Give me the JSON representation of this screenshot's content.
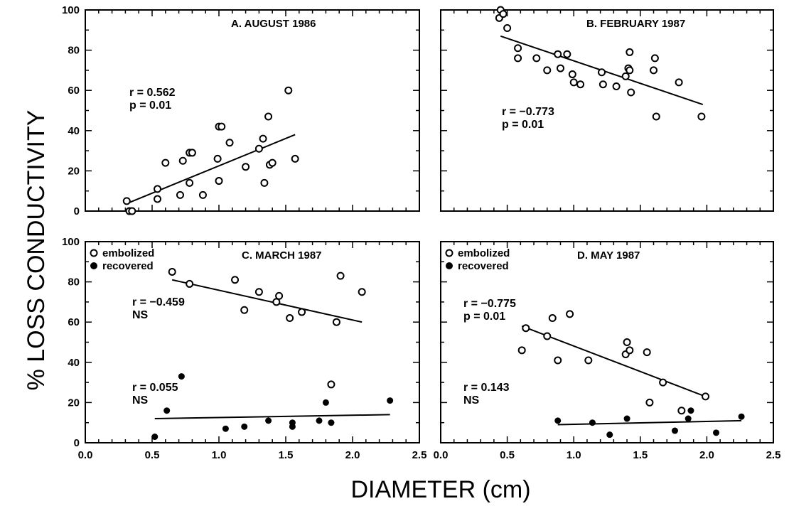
{
  "ylabel": "% LOSS CONDUCTIVITY",
  "xlabel": "DIAMETER (cm)",
  "x_ticks": [
    "0.0",
    "0.5",
    "1.0",
    "1.5",
    "2.0",
    "2.5"
  ],
  "y_ticks": [
    "0",
    "20",
    "40",
    "60",
    "80",
    "100"
  ],
  "legend": {
    "embolized": "embolized",
    "recovered": "recovered"
  },
  "chart_data": [
    {
      "type": "scatter",
      "panel": "A",
      "title": "A. AUGUST 1986",
      "xlim": [
        0,
        2.5
      ],
      "ylim": [
        0,
        100
      ],
      "series": [
        {
          "name": "",
          "marker": "open",
          "x": [
            0.31,
            0.33,
            0.35,
            0.54,
            0.54,
            0.6,
            0.71,
            0.73,
            0.78,
            0.78,
            0.8,
            0.88,
            0.99,
            1.0,
            1.0,
            1.02,
            1.08,
            1.2,
            1.3,
            1.33,
            1.34,
            1.37,
            1.38,
            1.4,
            1.52,
            1.57
          ],
          "y": [
            5,
            0,
            0,
            11,
            6,
            24,
            8,
            25,
            14,
            29,
            29,
            8,
            26,
            15,
            42,
            42,
            34,
            22,
            31,
            36,
            14,
            47,
            23,
            24,
            60,
            26
          ],
          "fit": {
            "x": [
              0.32,
              1.57
            ],
            "y": [
              4,
              38
            ]
          },
          "r_label": "r = 0.562",
          "p_label": "p = 0.01"
        }
      ]
    },
    {
      "type": "scatter",
      "panel": "B",
      "title": "B. FEBRUARY 1987",
      "xlim": [
        0,
        2.5
      ],
      "ylim": [
        0,
        100
      ],
      "series": [
        {
          "name": "",
          "marker": "open",
          "x": [
            0.44,
            0.45,
            0.47,
            0.5,
            0.58,
            0.58,
            0.72,
            0.8,
            0.88,
            0.9,
            0.95,
            0.99,
            1.0,
            1.05,
            1.21,
            1.22,
            1.32,
            1.39,
            1.41,
            1.42,
            1.42,
            1.43,
            1.6,
            1.61,
            1.62,
            1.79,
            1.96
          ],
          "y": [
            96,
            100,
            98,
            91,
            81,
            76,
            76,
            70,
            78,
            71,
            78,
            68,
            64,
            63,
            69,
            63,
            62,
            67,
            71,
            70,
            79,
            59,
            70,
            76,
            47,
            64,
            47
          ],
          "fit": {
            "x": [
              0.45,
              1.97
            ],
            "y": [
              87,
              53
            ]
          },
          "r_label": "r = −0.773",
          "p_label": "p = 0.01"
        }
      ]
    },
    {
      "type": "scatter",
      "panel": "C",
      "title": "C. MARCH 1987",
      "xlim": [
        0,
        2.5
      ],
      "ylim": [
        0,
        100
      ],
      "series": [
        {
          "name": "embolized",
          "marker": "open",
          "x": [
            0.65,
            0.78,
            1.12,
            1.19,
            1.3,
            1.43,
            1.45,
            1.53,
            1.62,
            1.84,
            1.88,
            1.91,
            2.07
          ],
          "y": [
            85,
            79,
            81,
            66,
            75,
            70,
            73,
            62,
            65,
            29,
            60,
            83,
            75
          ],
          "fit": {
            "x": [
              0.65,
              2.07
            ],
            "y": [
              81,
              60
            ]
          },
          "r_label": "r = −0.459",
          "p_label": "NS"
        },
        {
          "name": "recovered",
          "marker": "filled",
          "x": [
            0.52,
            0.61,
            0.72,
            1.05,
            1.19,
            1.37,
            1.55,
            1.55,
            1.75,
            1.8,
            1.84,
            2.28
          ],
          "y": [
            3,
            16,
            33,
            7,
            8,
            11,
            10,
            8,
            11,
            20,
            10,
            21
          ],
          "fit": {
            "x": [
              0.52,
              2.28
            ],
            "y": [
              12,
              14
            ]
          },
          "r_label": "r = 0.055",
          "p_label": "NS"
        }
      ]
    },
    {
      "type": "scatter",
      "panel": "D",
      "title": "D. MAY 1987",
      "xlim": [
        0,
        2.5
      ],
      "ylim": [
        0,
        100
      ],
      "series": [
        {
          "name": "embolized",
          "marker": "open",
          "x": [
            0.61,
            0.64,
            0.8,
            0.84,
            0.88,
            0.97,
            1.11,
            1.39,
            1.4,
            1.42,
            1.55,
            1.57,
            1.67,
            1.81,
            1.99
          ],
          "y": [
            46,
            57,
            53,
            62,
            41,
            64,
            41,
            44,
            50,
            46,
            45,
            20,
            30,
            16,
            23
          ],
          "fit": {
            "x": [
              0.61,
              1.99
            ],
            "y": [
              58,
              23
            ]
          },
          "r_label": "r = −0.775",
          "p_label": "p = 0.01"
        },
        {
          "name": "recovered",
          "marker": "filled",
          "x": [
            0.88,
            1.14,
            1.27,
            1.4,
            1.76,
            1.86,
            1.88,
            2.07,
            2.26
          ],
          "y": [
            11,
            10,
            4,
            12,
            6,
            12,
            16,
            5,
            13
          ],
          "fit": {
            "x": [
              0.88,
              2.26
            ],
            "y": [
              9,
              11
            ]
          },
          "r_label": "r = 0.143",
          "p_label": "NS"
        }
      ]
    }
  ]
}
